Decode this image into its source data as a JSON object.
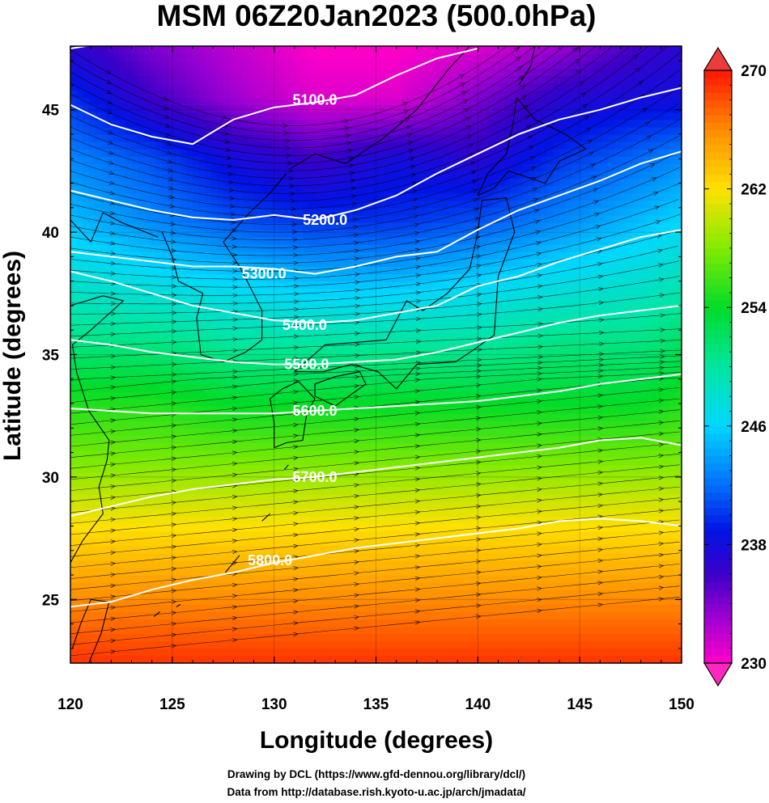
{
  "chart_data": {
    "type": "heatmap",
    "title": "MSM 06Z20Jan2023 (500.0hPa)",
    "xlabel": "Longitude (degrees)",
    "ylabel": "Latitude  (degrees)",
    "xlim": [
      120,
      150
    ],
    "ylim": [
      22.4,
      47.6
    ],
    "x_ticks": [
      "120",
      "125",
      "130",
      "135",
      "140",
      "145",
      "150"
    ],
    "y_ticks": [
      "25",
      "30",
      "35",
      "40",
      "45"
    ],
    "colorbar": {
      "range": [
        230,
        270
      ],
      "ticks": [
        "230",
        "238",
        "246",
        "254",
        "262",
        "270"
      ],
      "extend": "both"
    },
    "temperature_field_K": [
      {
        "lat": 47.6,
        "lon_values": [
          {
            "lon": 120,
            "v": 237
          },
          {
            "lon": 124,
            "v": 234
          },
          {
            "lon": 128,
            "v": 232
          },
          {
            "lon": 132,
            "v": 230
          },
          {
            "lon": 136,
            "v": 230
          },
          {
            "lon": 140,
            "v": 231
          },
          {
            "lon": 144,
            "v": 233
          },
          {
            "lon": 148,
            "v": 236
          },
          {
            "lon": 150,
            "v": 237
          }
        ]
      },
      {
        "lat": 45.5,
        "lon_values": [
          {
            "lon": 120,
            "v": 240
          },
          {
            "lon": 124,
            "v": 236
          },
          {
            "lon": 128,
            "v": 233
          },
          {
            "lon": 132,
            "v": 231
          },
          {
            "lon": 136,
            "v": 231
          },
          {
            "lon": 140,
            "v": 234
          },
          {
            "lon": 144,
            "v": 237
          },
          {
            "lon": 148,
            "v": 238
          },
          {
            "lon": 150,
            "v": 238
          }
        ]
      },
      {
        "lat": 43.0,
        "lon_values": [
          {
            "lon": 120,
            "v": 243
          },
          {
            "lon": 124,
            "v": 241
          },
          {
            "lon": 128,
            "v": 238
          },
          {
            "lon": 132,
            "v": 236
          },
          {
            "lon": 136,
            "v": 238
          },
          {
            "lon": 140,
            "v": 237
          },
          {
            "lon": 144,
            "v": 240
          },
          {
            "lon": 148,
            "v": 242
          },
          {
            "lon": 150,
            "v": 243
          }
        ]
      },
      {
        "lat": 40.5,
        "lon_values": [
          {
            "lon": 120,
            "v": 245
          },
          {
            "lon": 124,
            "v": 243
          },
          {
            "lon": 128,
            "v": 241
          },
          {
            "lon": 132,
            "v": 240
          },
          {
            "lon": 136,
            "v": 240
          },
          {
            "lon": 140,
            "v": 241
          },
          {
            "lon": 144,
            "v": 243
          },
          {
            "lon": 148,
            "v": 245
          },
          {
            "lon": 150,
            "v": 246
          }
        ]
      },
      {
        "lat": 38.0,
        "lon_values": [
          {
            "lon": 120,
            "v": 248
          },
          {
            "lon": 124,
            "v": 247
          },
          {
            "lon": 128,
            "v": 246
          },
          {
            "lon": 132,
            "v": 245
          },
          {
            "lon": 136,
            "v": 245
          },
          {
            "lon": 140,
            "v": 246
          },
          {
            "lon": 144,
            "v": 247
          },
          {
            "lon": 148,
            "v": 248
          },
          {
            "lon": 150,
            "v": 249
          }
        ]
      },
      {
        "lat": 35.5,
        "lon_values": [
          {
            "lon": 120,
            "v": 251
          },
          {
            "lon": 124,
            "v": 251
          },
          {
            "lon": 128,
            "v": 250
          },
          {
            "lon": 132,
            "v": 250
          },
          {
            "lon": 136,
            "v": 250
          },
          {
            "lon": 140,
            "v": 250
          },
          {
            "lon": 144,
            "v": 251
          },
          {
            "lon": 148,
            "v": 251
          },
          {
            "lon": 150,
            "v": 252
          }
        ]
      },
      {
        "lat": 33.0,
        "lon_values": [
          {
            "lon": 120,
            "v": 255
          },
          {
            "lon": 124,
            "v": 255
          },
          {
            "lon": 128,
            "v": 254
          },
          {
            "lon": 132,
            "v": 254
          },
          {
            "lon": 136,
            "v": 254
          },
          {
            "lon": 140,
            "v": 254
          },
          {
            "lon": 144,
            "v": 254
          },
          {
            "lon": 148,
            "v": 254
          },
          {
            "lon": 150,
            "v": 255
          }
        ]
      },
      {
        "lat": 30.5,
        "lon_values": [
          {
            "lon": 120,
            "v": 258
          },
          {
            "lon": 124,
            "v": 258
          },
          {
            "lon": 128,
            "v": 258
          },
          {
            "lon": 132,
            "v": 258
          },
          {
            "lon": 136,
            "v": 258
          },
          {
            "lon": 140,
            "v": 258
          },
          {
            "lon": 144,
            "v": 258
          },
          {
            "lon": 148,
            "v": 258
          },
          {
            "lon": 150,
            "v": 258
          }
        ]
      },
      {
        "lat": 28.0,
        "lon_values": [
          {
            "lon": 120,
            "v": 262
          },
          {
            "lon": 124,
            "v": 262
          },
          {
            "lon": 128,
            "v": 262
          },
          {
            "lon": 132,
            "v": 262
          },
          {
            "lon": 136,
            "v": 262
          },
          {
            "lon": 140,
            "v": 262
          },
          {
            "lon": 144,
            "v": 262
          },
          {
            "lon": 148,
            "v": 262
          },
          {
            "lon": 150,
            "v": 262
          }
        ]
      },
      {
        "lat": 25.0,
        "lon_values": [
          {
            "lon": 120,
            "v": 266
          },
          {
            "lon": 124,
            "v": 266
          },
          {
            "lon": 128,
            "v": 266
          },
          {
            "lon": 132,
            "v": 266
          },
          {
            "lon": 136,
            "v": 266
          },
          {
            "lon": 140,
            "v": 266
          },
          {
            "lon": 144,
            "v": 266
          },
          {
            "lon": 148,
            "v": 266
          },
          {
            "lon": 150,
            "v": 266
          }
        ]
      },
      {
        "lat": 22.4,
        "lon_values": [
          {
            "lon": 120,
            "v": 269
          },
          {
            "lon": 124,
            "v": 269
          },
          {
            "lon": 128,
            "v": 269
          },
          {
            "lon": 132,
            "v": 269
          },
          {
            "lon": 136,
            "v": 269
          },
          {
            "lon": 140,
            "v": 269
          },
          {
            "lon": 144,
            "v": 269
          },
          {
            "lon": 148,
            "v": 269
          },
          {
            "lon": 150,
            "v": 269
          }
        ]
      }
    ],
    "height_contours_m": [
      {
        "label": "5100.0",
        "level": 5100,
        "points": [
          [
            120.0,
            45.2
          ],
          [
            122.0,
            44.4
          ],
          [
            124.0,
            43.9
          ],
          [
            126.0,
            43.6
          ],
          [
            128.0,
            44.6
          ],
          [
            130.0,
            45.1
          ],
          [
            132.0,
            45.3
          ],
          [
            134.0,
            45.6
          ],
          [
            136.0,
            46.4
          ],
          [
            138.0,
            47.1
          ],
          [
            140.0,
            47.5
          ]
        ]
      },
      {
        "label": "5100.0",
        "level": 5100,
        "points": [
          [
            120.0,
            47.5
          ],
          [
            121.5,
            47.7
          ]
        ]
      },
      {
        "label": "5200.0",
        "level": 5200,
        "points": [
          [
            120.0,
            41.7
          ],
          [
            122.0,
            41.3
          ],
          [
            124.0,
            40.9
          ],
          [
            126.0,
            40.6
          ],
          [
            128.0,
            40.5
          ],
          [
            130.0,
            40.7
          ],
          [
            132.0,
            40.5
          ],
          [
            134.0,
            40.9
          ],
          [
            136.0,
            41.5
          ],
          [
            138.0,
            42.4
          ],
          [
            140.0,
            43.2
          ],
          [
            142.0,
            44.0
          ],
          [
            144.0,
            44.6
          ],
          [
            146.0,
            45.0
          ],
          [
            148.0,
            45.5
          ],
          [
            150.0,
            45.9
          ]
        ]
      },
      {
        "label": "5300.0",
        "level": 5300,
        "points": [
          [
            120.0,
            39.2
          ],
          [
            122.0,
            39.0
          ],
          [
            124.0,
            38.8
          ],
          [
            126.0,
            38.6
          ],
          [
            128.0,
            38.6
          ],
          [
            130.0,
            38.5
          ],
          [
            132.0,
            38.3
          ],
          [
            134.0,
            38.6
          ],
          [
            136.0,
            39.0
          ],
          [
            138.0,
            39.2
          ],
          [
            140.0,
            40.1
          ],
          [
            142.0,
            40.9
          ],
          [
            144.0,
            41.5
          ],
          [
            146.0,
            42.1
          ],
          [
            148.0,
            42.8
          ],
          [
            150.0,
            43.3
          ]
        ]
      },
      {
        "label": "5400.0",
        "level": 5400,
        "points": [
          [
            120.0,
            38.4
          ],
          [
            122.0,
            38.0
          ],
          [
            124.0,
            37.5
          ],
          [
            126.0,
            37.0
          ],
          [
            128.0,
            36.7
          ],
          [
            130.0,
            36.4
          ],
          [
            132.0,
            36.3
          ],
          [
            134.0,
            36.4
          ],
          [
            136.0,
            36.7
          ],
          [
            138.0,
            37.0
          ],
          [
            140.0,
            37.8
          ],
          [
            142.0,
            38.2
          ],
          [
            144.0,
            38.8
          ],
          [
            146.0,
            39.3
          ],
          [
            148.0,
            39.8
          ],
          [
            150.0,
            40.1
          ]
        ]
      },
      {
        "label": "5500.0",
        "level": 5500,
        "points": [
          [
            120.0,
            35.6
          ],
          [
            122.0,
            35.4
          ],
          [
            124.0,
            35.1
          ],
          [
            126.0,
            34.9
          ],
          [
            128.0,
            34.7
          ],
          [
            130.0,
            34.6
          ],
          [
            132.0,
            34.6
          ],
          [
            134.0,
            34.7
          ],
          [
            136.0,
            34.8
          ],
          [
            138.0,
            35.1
          ],
          [
            140.0,
            35.5
          ],
          [
            142.0,
            35.9
          ],
          [
            144.0,
            36.3
          ],
          [
            146.0,
            36.6
          ],
          [
            148.0,
            36.8
          ],
          [
            150.0,
            37.0
          ]
        ]
      },
      {
        "label": "5600.0",
        "level": 5600,
        "points": [
          [
            120.0,
            32.8
          ],
          [
            122.0,
            32.7
          ],
          [
            124.0,
            32.6
          ],
          [
            126.0,
            32.6
          ],
          [
            128.0,
            32.6
          ],
          [
            130.0,
            32.6
          ],
          [
            132.0,
            32.7
          ],
          [
            134.0,
            32.8
          ],
          [
            136.0,
            32.9
          ],
          [
            138.0,
            33.0
          ],
          [
            140.0,
            33.1
          ],
          [
            142.0,
            33.3
          ],
          [
            144.0,
            33.5
          ],
          [
            146.0,
            33.8
          ],
          [
            148.0,
            34.0
          ],
          [
            150.0,
            34.2
          ]
        ]
      },
      {
        "label": "5700.0",
        "level": 5700,
        "points": [
          [
            120.0,
            28.4
          ],
          [
            122.0,
            28.8
          ],
          [
            124.0,
            29.2
          ],
          [
            126.0,
            29.5
          ],
          [
            128.0,
            29.7
          ],
          [
            130.0,
            29.9
          ],
          [
            132.0,
            30.0
          ],
          [
            134.0,
            30.2
          ],
          [
            136.0,
            30.4
          ],
          [
            138.0,
            30.6
          ],
          [
            140.0,
            30.8
          ],
          [
            142.0,
            31.0
          ],
          [
            144.0,
            31.2
          ],
          [
            146.0,
            31.5
          ],
          [
            148.0,
            31.6
          ],
          [
            150.0,
            31.3
          ]
        ]
      },
      {
        "label": "5800.0",
        "level": 5800,
        "points": [
          [
            120.0,
            24.7
          ],
          [
            122.0,
            24.9
          ],
          [
            124.0,
            25.4
          ],
          [
            126.0,
            25.8
          ],
          [
            128.0,
            26.1
          ],
          [
            130.0,
            26.5
          ],
          [
            132.0,
            26.8
          ],
          [
            134.0,
            27.1
          ],
          [
            136.0,
            27.3
          ],
          [
            138.0,
            27.5
          ],
          [
            140.0,
            27.7
          ],
          [
            142.0,
            27.9
          ],
          [
            144.0,
            28.2
          ],
          [
            146.0,
            28.3
          ],
          [
            148.0,
            28.2
          ],
          [
            150.0,
            28.0
          ]
        ]
      }
    ],
    "contour_labels": [
      {
        "text": "5100.0",
        "lon": 132.0,
        "lat": 45.4
      },
      {
        "text": "5200.0",
        "lon": 132.5,
        "lat": 40.5
      },
      {
        "text": "5300.0",
        "lon": 129.5,
        "lat": 38.3
      },
      {
        "text": "5400.0",
        "lon": 131.5,
        "lat": 36.2
      },
      {
        "text": "5500.0",
        "lon": 131.6,
        "lat": 34.6
      },
      {
        "text": "5600.0",
        "lon": 132.0,
        "lat": 32.7
      },
      {
        "text": "5700.0",
        "lon": 132.0,
        "lat": 30.0
      },
      {
        "text": "5800.0",
        "lon": 129.8,
        "lat": 26.6
      }
    ],
    "wind_field": "westerly flow, curved around trough near 132E, 44N"
  },
  "credits": {
    "line1": "Drawing by DCL (https://www.gfd-dennou.org/library/dcl/)",
    "line2": "Data from http://database.rish.kyoto-u.ac.jp/arch/jmadata/"
  }
}
